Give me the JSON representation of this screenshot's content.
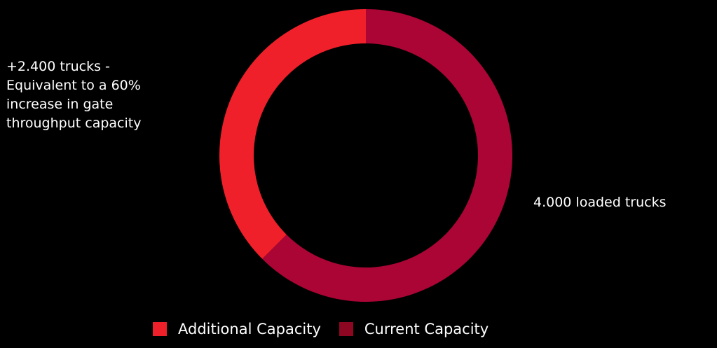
{
  "chart_data": {
    "type": "pie",
    "donut": true,
    "title": "",
    "series": [
      {
        "name": "Additional Capacity",
        "value": 2400,
        "color": "#f0202a"
      },
      {
        "name": "Current Capacity",
        "value": 4000,
        "color": "#aa0535"
      }
    ],
    "annotations": {
      "additional": [
        "+2.400 trucks -",
        "Equivalent to a 60%",
        "increase in gate",
        "throughput capacity"
      ],
      "current": "4.000 loaded trucks"
    },
    "legend": {
      "placement": "bottom",
      "items": [
        {
          "label": "Additional Capacity",
          "color": "#f0202a"
        },
        {
          "label": "Current Capacity",
          "color": "#8d0622"
        }
      ]
    }
  }
}
